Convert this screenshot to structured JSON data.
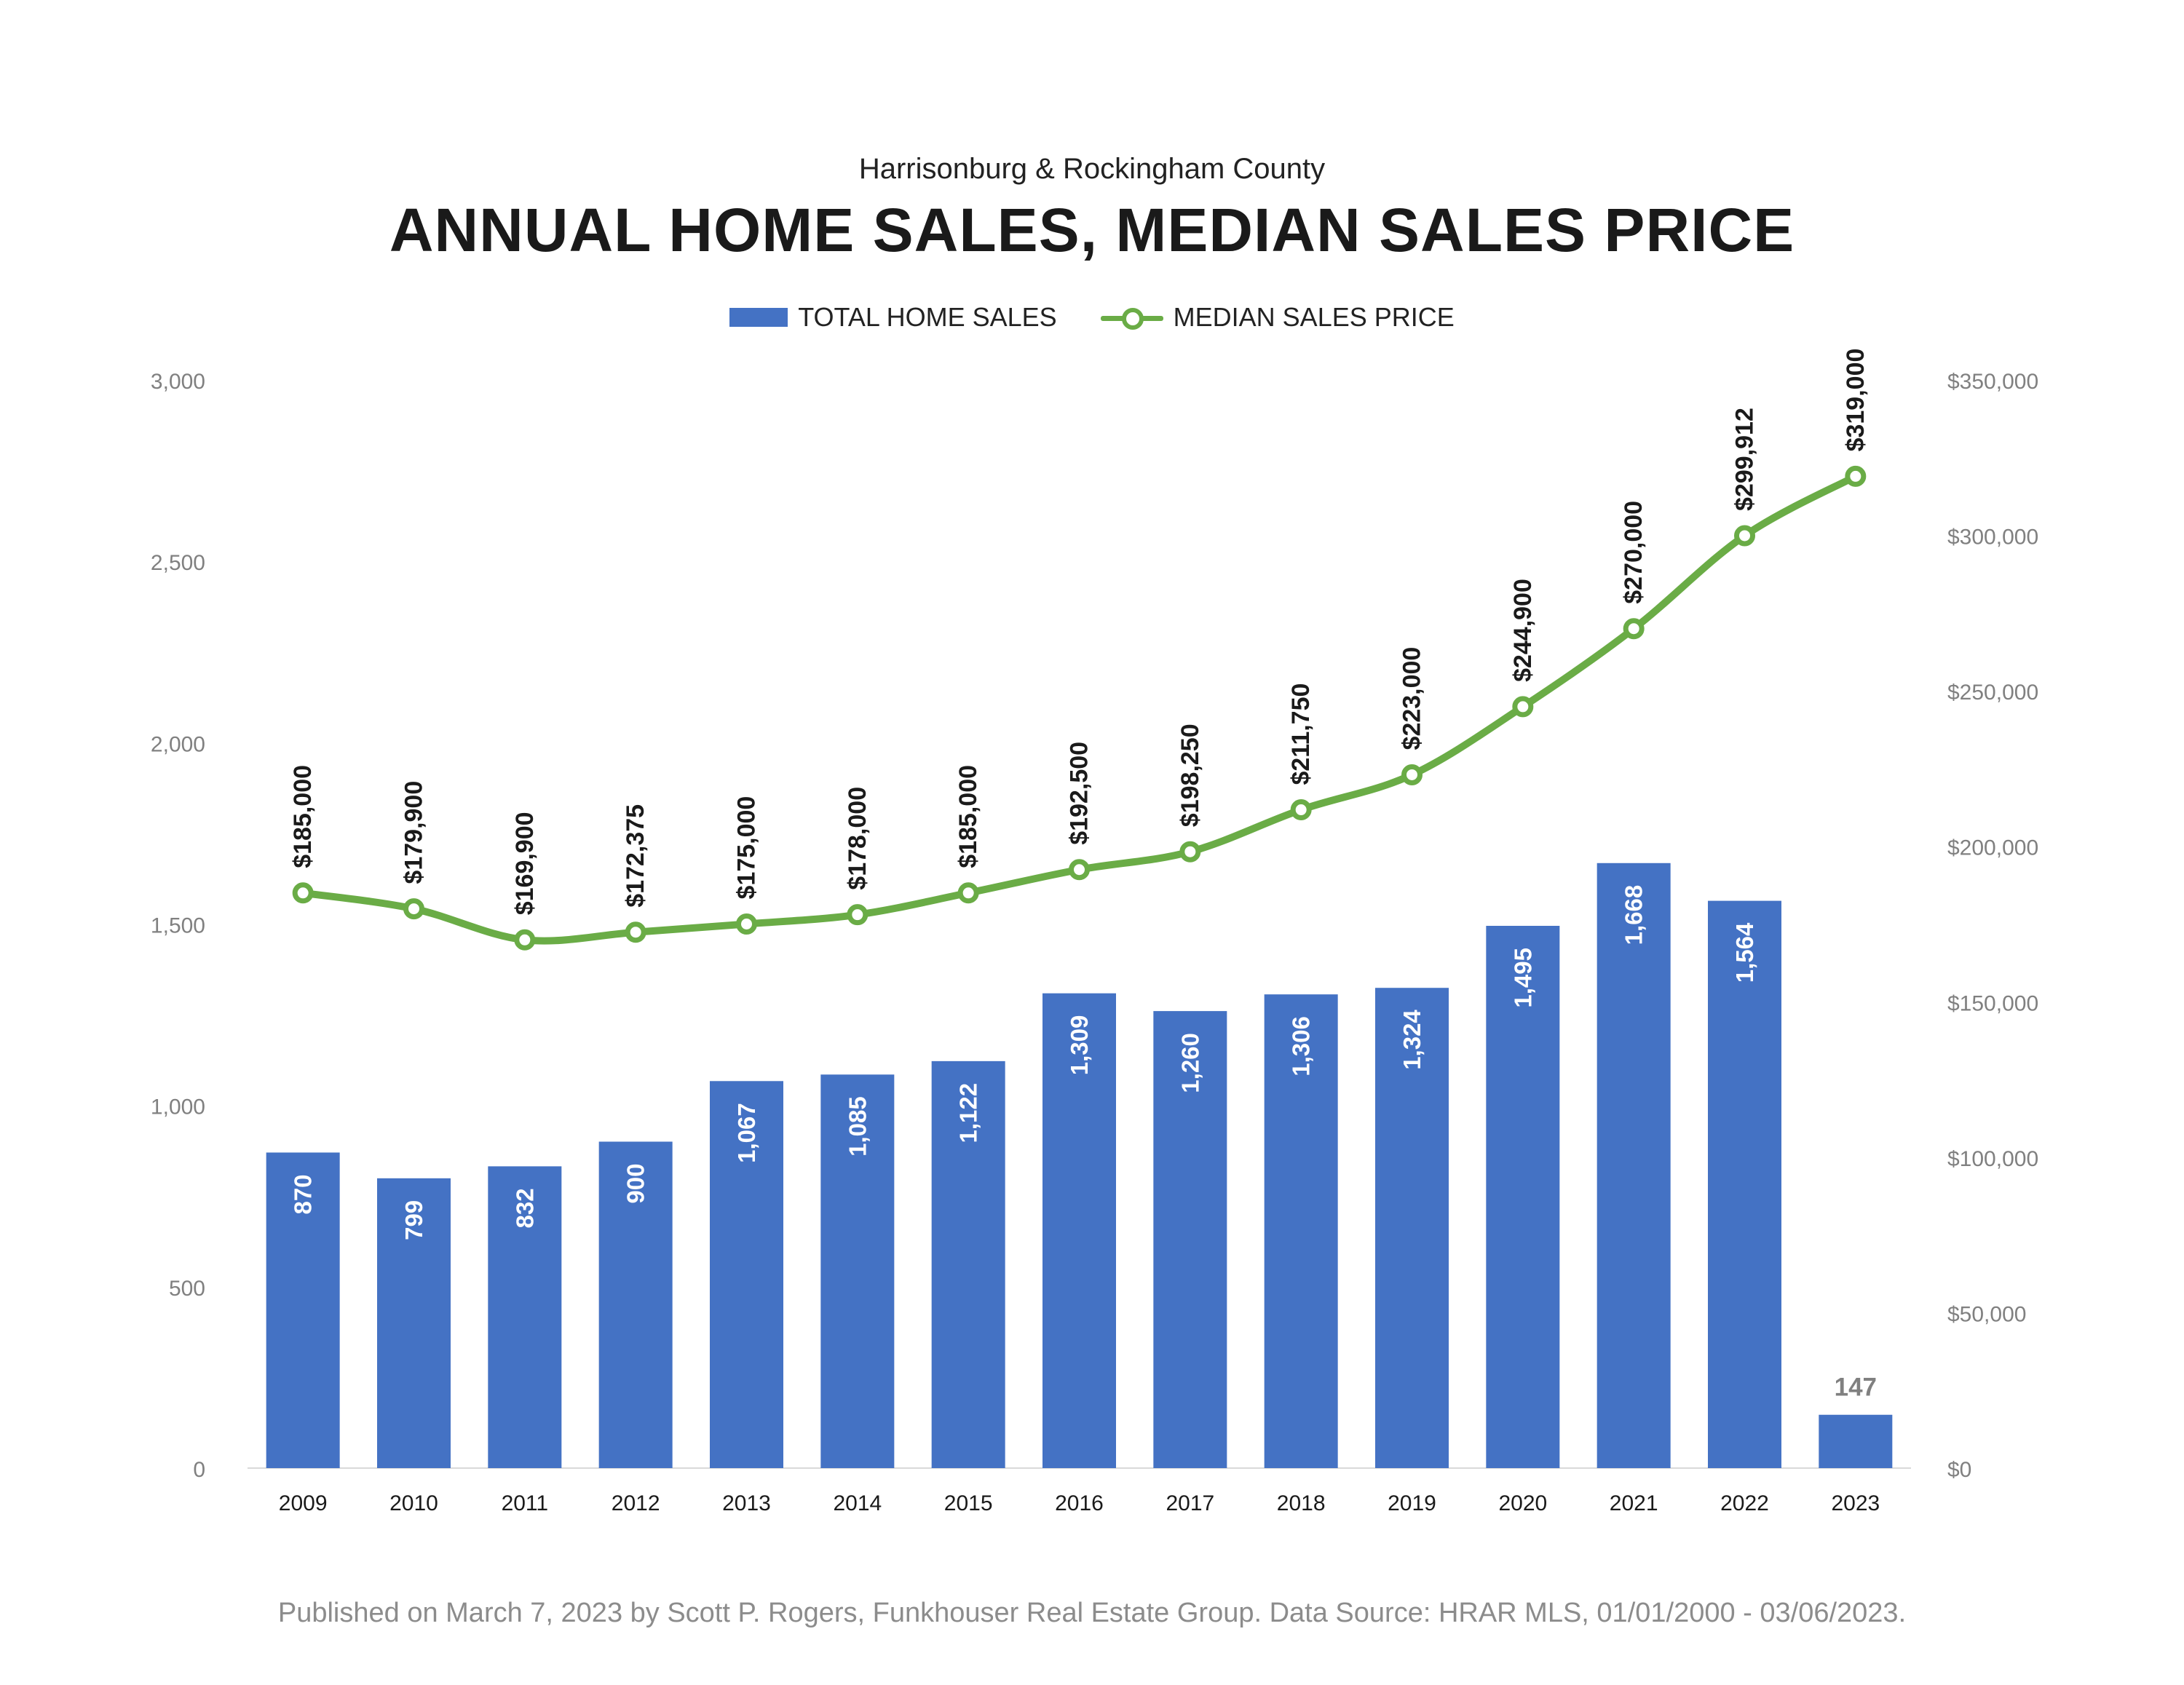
{
  "header": {
    "subtitle": "Harrisonburg & Rockingham County",
    "title": "ANNUAL HOME SALES, MEDIAN SALES PRICE"
  },
  "legend": {
    "bar_label": "TOTAL HOME SALES",
    "line_label": "MEDIAN SALES PRICE"
  },
  "footer": {
    "note": "Published on March 7, 2023 by Scott P. Rogers, Funkhouser Real Estate Group. Data Source: HRAR MLS, 01/01/2000 - 03/06/2023."
  },
  "colors": {
    "bar": "#4472c4",
    "line": "#6aac46",
    "axis_text": "#808080",
    "bar_label_inside": "#ffffff",
    "bar_label_outside": "#808080",
    "line_label": "#1a1a1a"
  },
  "chart_data": {
    "type": "bar+line",
    "categories": [
      "2009",
      "2010",
      "2011",
      "2012",
      "2013",
      "2014",
      "2015",
      "2016",
      "2017",
      "2018",
      "2019",
      "2020",
      "2021",
      "2022",
      "2023"
    ],
    "series": [
      {
        "name": "TOTAL HOME SALES",
        "type": "bar",
        "axis": "left",
        "values": [
          870,
          799,
          832,
          900,
          1067,
          1085,
          1122,
          1309,
          1260,
          1306,
          1324,
          1495,
          1668,
          1564,
          147
        ],
        "labels": [
          "870",
          "799",
          "832",
          "900",
          "1,067",
          "1,085",
          "1,122",
          "1,309",
          "1,260",
          "1,306",
          "1,324",
          "1,495",
          "1,668",
          "1,564",
          "147"
        ]
      },
      {
        "name": "MEDIAN SALES PRICE",
        "type": "line",
        "axis": "right",
        "values": [
          185000,
          179900,
          169900,
          172375,
          175000,
          178000,
          185000,
          192500,
          198250,
          211750,
          223000,
          244900,
          270000,
          299912,
          319000
        ],
        "labels": [
          "$185,000",
          "$179,900",
          "$169,900",
          "$172,375",
          "$175,000",
          "$178,000",
          "$185,000",
          "$192,500",
          "$198,250",
          "$211,750",
          "$223,000",
          "$244,900",
          "$270,000",
          "$299,912",
          "$319,000"
        ]
      }
    ],
    "y_left": {
      "ylim": [
        0,
        3000
      ],
      "ticks": [
        0,
        500,
        1000,
        1500,
        2000,
        2500,
        3000
      ],
      "tick_labels": [
        "0",
        "500",
        "1,000",
        "1,500",
        "2,000",
        "2,500",
        "3,000"
      ]
    },
    "y_right": {
      "ylim": [
        0,
        350000
      ],
      "ticks": [
        0,
        50000,
        100000,
        150000,
        200000,
        250000,
        300000,
        350000
      ],
      "tick_labels": [
        "$0",
        "$50,000",
        "$100,000",
        "$150,000",
        "$200,000",
        "$250,000",
        "$300,000",
        "$350,000"
      ]
    },
    "grid": false,
    "legend_position": "top-center"
  }
}
